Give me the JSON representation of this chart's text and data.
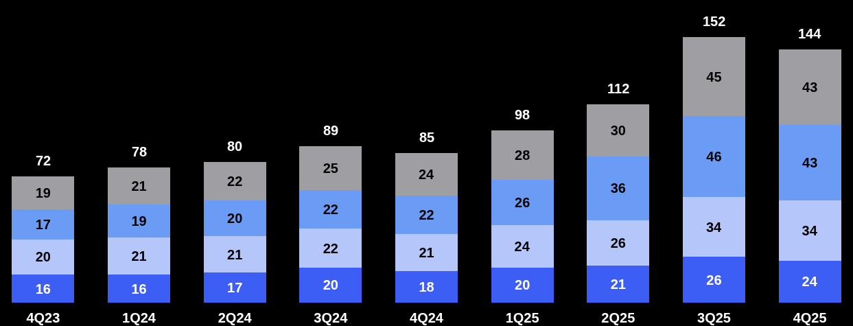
{
  "chart_data": {
    "type": "bar",
    "stacked": true,
    "data_labels": true,
    "categories": [
      "4Q23",
      "1Q24",
      "2Q24",
      "3Q24",
      "4Q24",
      "1Q25",
      "2Q25",
      "3Q25",
      "4Q25"
    ],
    "series": [
      {
        "color": "#3d5ef5",
        "values": [
          16,
          16,
          17,
          20,
          18,
          20,
          21,
          26,
          24
        ]
      },
      {
        "color": "#b4c6fa",
        "values": [
          20,
          21,
          21,
          22,
          21,
          24,
          26,
          34,
          34
        ]
      },
      {
        "color": "#6b9cf5",
        "values": [
          17,
          19,
          20,
          22,
          22,
          26,
          36,
          46,
          43
        ]
      },
      {
        "color": "#9e9ea3",
        "values": [
          19,
          21,
          22,
          25,
          24,
          28,
          30,
          45,
          43
        ]
      }
    ],
    "totals": [
      "72",
      "78",
      "80",
      "89",
      "85",
      "98",
      "112",
      "152",
      "144"
    ]
  }
}
